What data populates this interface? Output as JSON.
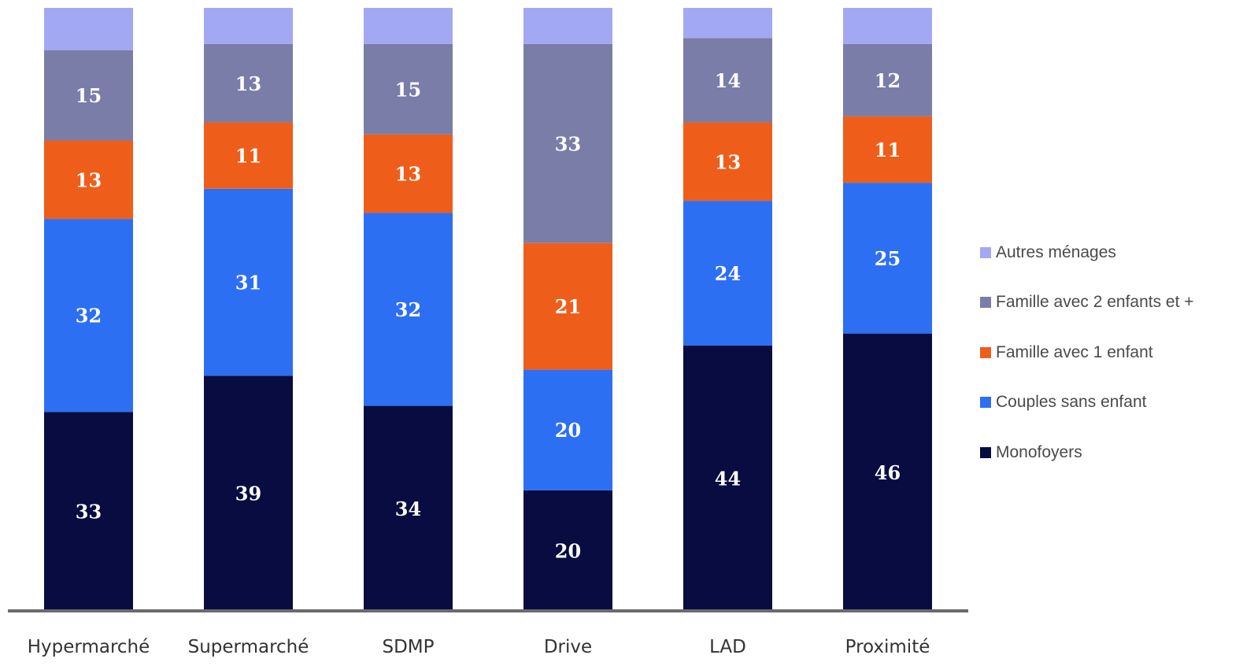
{
  "chart_data": {
    "type": "bar",
    "stacked": true,
    "categories": [
      "Hypermarché",
      "Supermarché",
      "SDMP",
      "Drive",
      "LAD",
      "Proximité"
    ],
    "series": [
      {
        "name": "Monofoyers",
        "color": "#080c40",
        "values": [
          33,
          39,
          34,
          20,
          44,
          46
        ],
        "labels": [
          "33",
          "39",
          "34",
          "20",
          "44",
          "46"
        ]
      },
      {
        "name": "Couples sans enfant",
        "color": "#2d6ff3",
        "values": [
          32,
          31,
          32,
          20,
          24,
          25
        ],
        "labels": [
          "32",
          "31",
          "32",
          "20",
          "24",
          "25"
        ]
      },
      {
        "name": "Famille avec 1 enfant",
        "color": "#ee5e1a",
        "values": [
          13,
          11,
          13,
          21,
          13,
          11
        ],
        "labels": [
          "13",
          "11",
          "13",
          "21",
          "13",
          "11"
        ]
      },
      {
        "name": "Famille avec 2 enfants et +",
        "color": "#7a7da8",
        "values": [
          15,
          13,
          15,
          33,
          14,
          12
        ],
        "labels": [
          "15",
          "13",
          "15",
          "33",
          "14",
          "12"
        ]
      },
      {
        "name": "Autres ménages",
        "color": "#a3a8f2",
        "values": [
          7,
          6,
          6,
          6,
          5,
          6
        ],
        "labels": [
          "",
          "",
          "",
          "",
          "",
          ""
        ]
      }
    ],
    "ylim": [
      0,
      100
    ],
    "legend_position": "right",
    "legend_order": [
      "Autres ménages",
      "Famille avec 2 enfants et +",
      "Famille avec 1 enfant",
      "Couples sans enfant",
      "Monofoyers"
    ],
    "axis_color": "#6b6b6b",
    "grid": false
  }
}
